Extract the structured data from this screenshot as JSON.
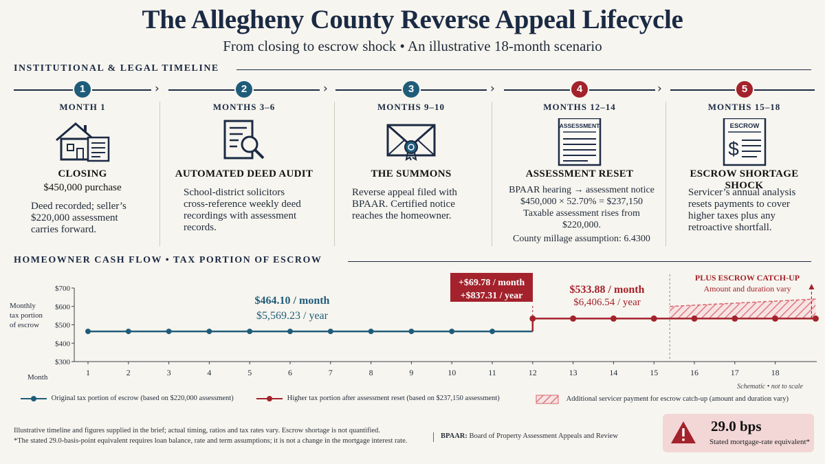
{
  "header": {
    "title": "The Allegheny County Reverse Appeal Lifecycle",
    "subtitle": "From closing to escrow shock • An illustrative 18-month scenario"
  },
  "timeline": {
    "section_title": "INSTITUTIONAL & LEGAL TIMELINE",
    "stages": [
      {
        "number": "1",
        "month": "MONTH 1",
        "icon": "house-document-icon",
        "title": "CLOSING",
        "subtitle": "$450,000 purchase",
        "lines": [
          "Deed recorded; seller’s",
          "$220,000 assessment",
          "carries forward."
        ],
        "color": "#1f5c7a"
      },
      {
        "number": "2",
        "month": "MONTHS 3–6",
        "icon": "document-magnifier-icon",
        "title": "AUTOMATED DEED AUDIT",
        "subtitle": "",
        "lines": [
          "School-district solicitors",
          "cross-reference weekly deed",
          "recordings with assessment",
          "records."
        ],
        "color": "#1f5c7a"
      },
      {
        "number": "3",
        "month": "MONTHS 9–10",
        "icon": "sealed-envelope-icon",
        "title": "THE SUMMONS",
        "subtitle": "",
        "lines": [
          "Reverse appeal filed with",
          "BPAAR. Certified notice",
          "reaches the homeowner."
        ],
        "color": "#1f5c7a"
      },
      {
        "number": "4",
        "month": "MONTHS 12–14",
        "icon": "assessment-notice-icon",
        "icon_label": "ASSESSMENT",
        "title": "ASSESSMENT RESET",
        "subtitle": "",
        "lines": [
          "BPAAR hearing → assessment notice",
          "$450,000 × 52.70% = $237,150",
          "Taxable assessment rises from",
          "$220,000.",
          "County millage assumption: 6.4300"
        ],
        "color": "#a3222b"
      },
      {
        "number": "5",
        "month": "MONTHS 15–18",
        "icon": "escrow-statement-icon",
        "icon_label": "ESCROW",
        "title": "ESCROW SHORTAGE SHOCK",
        "subtitle": "",
        "lines": [
          "Servicer’s annual analysis",
          "resets payments to cover",
          "higher taxes plus any",
          "retroactive shortfall."
        ],
        "color": "#a3222b"
      }
    ]
  },
  "cashflow": {
    "section_title": "HOMEOWNER CASH FLOW • TAX PORTION OF ESCROW"
  },
  "chart_data": {
    "type": "line",
    "ylabel": "Monthly tax portion of escrow",
    "xlabel": "Month",
    "ylim": [
      300,
      700
    ],
    "yticks": [
      "$300",
      "$400",
      "$500",
      "$600",
      "$700"
    ],
    "x_ticks": [
      1,
      2,
      3,
      4,
      5,
      6,
      7,
      8,
      9,
      10,
      11,
      12,
      13,
      14,
      15,
      16,
      17,
      18
    ],
    "grid": false,
    "series": [
      {
        "name": "Original tax portion of escrow (based on $220,000 assessment)",
        "color": "#1f5c7a",
        "x": [
          1,
          2,
          3,
          4,
          5,
          6,
          7,
          8,
          9,
          10,
          11,
          12
        ],
        "values": [
          464.1,
          464.1,
          464.1,
          464.1,
          464.1,
          464.1,
          464.1,
          464.1,
          464.1,
          464.1,
          464.1,
          464.1
        ]
      },
      {
        "name": "Higher tax portion after assessment reset (based on $237,150 assessment)",
        "color": "#a3222b",
        "x": [
          12,
          13,
          14,
          15,
          16,
          17,
          18,
          19
        ],
        "values": [
          533.88,
          533.88,
          533.88,
          533.88,
          533.88,
          533.88,
          533.88,
          533.88
        ]
      }
    ],
    "catchup_band": {
      "name": "Additional servicer payment for escrow catch-up (amount and duration vary)",
      "color": "#d9666e"
    },
    "annotations": {
      "before_month": "$464.10 / month",
      "before_year": "$5,569.23 / year",
      "jump_month": "+$69.78 / month",
      "jump_year": "+$837.31 / year",
      "after_month": "$533.88 / month",
      "after_year": "$6,406.54 / year",
      "catchup_title": "PLUS ESCROW CATCH-UP",
      "catchup_sub": "Amount and duration vary",
      "schematic": "Schematic • not to scale"
    }
  },
  "footer": {
    "note1": "Illustrative timeline and figures supplied in the brief; actual timing, ratios and tax rates vary. Escrow shortage is not quantified.",
    "note2": "*The stated 29.0-basis-point equivalent requires loan balance, rate and term assumptions; it is not a change in the mortgage interest rate.",
    "bpaar_term": "BPAAR:",
    "bpaar_def": "Board of Property Assessment Appeals and Review",
    "bps_value": "29.0 bps",
    "bps_label": "Stated mortgage-rate equivalent*"
  }
}
